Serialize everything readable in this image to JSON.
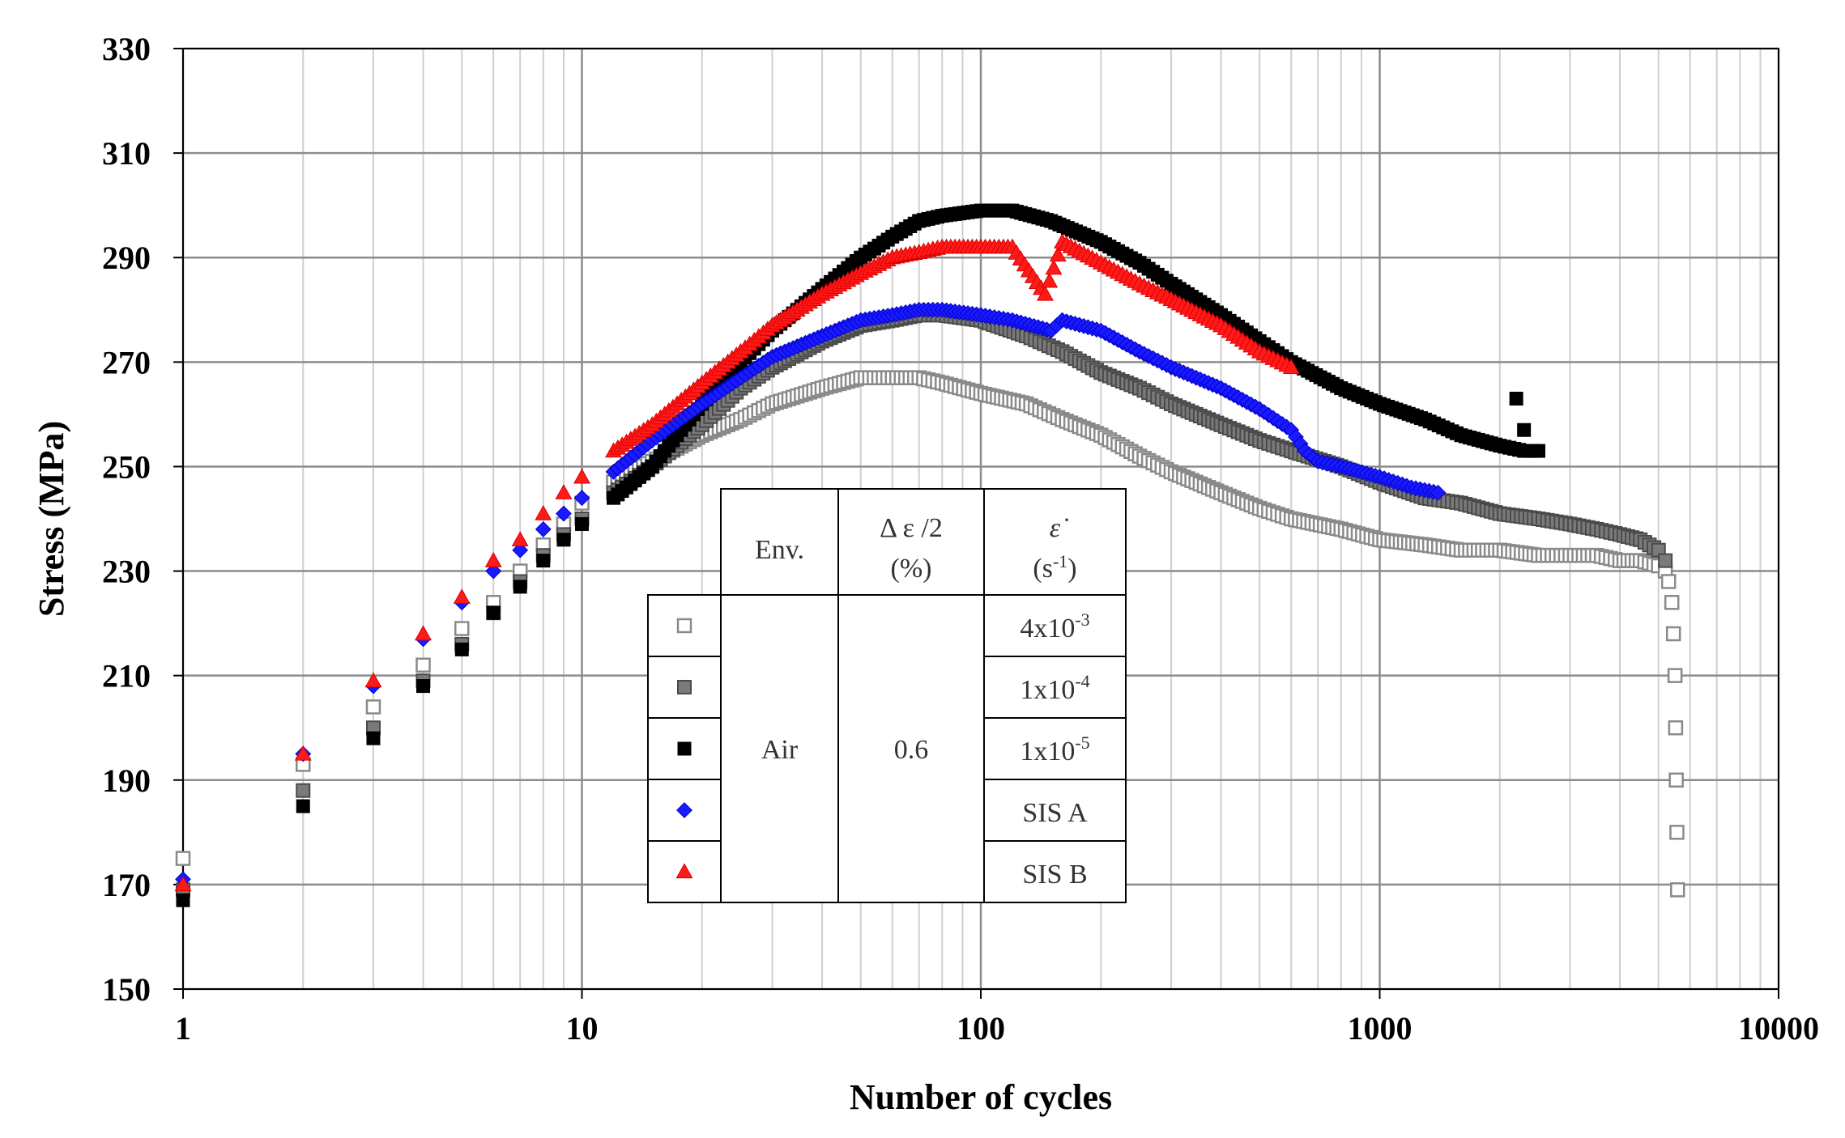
{
  "chart_data": {
    "type": "scatter",
    "title": "",
    "xlabel": "Number of cycles",
    "ylabel": "Stress (MPa)",
    "xscale": "log",
    "xlim": [
      1,
      10000
    ],
    "ylim": [
      150,
      330
    ],
    "grid": true,
    "xticks": [
      {
        "value": 1,
        "label": "1"
      },
      {
        "value": 10,
        "label": "10"
      },
      {
        "value": 100,
        "label": "100"
      },
      {
        "value": 1000,
        "label": "1000"
      },
      {
        "value": 10000,
        "label": "10000"
      }
    ],
    "yticks": [
      {
        "value": 150,
        "label": "150"
      },
      {
        "value": 170,
        "label": "170"
      },
      {
        "value": 190,
        "label": "190"
      },
      {
        "value": 210,
        "label": "210"
      },
      {
        "value": 230,
        "label": "230"
      },
      {
        "value": 250,
        "label": "250"
      },
      {
        "value": 270,
        "label": "270"
      },
      {
        "value": 290,
        "label": "290"
      },
      {
        "value": 310,
        "label": "310"
      },
      {
        "value": 330,
        "label": "330"
      }
    ],
    "series": [
      {
        "name": "4x10-3",
        "marker": "square-open",
        "color": "#999999",
        "points": [
          [
            1,
            175
          ],
          [
            2,
            193
          ],
          [
            3,
            204
          ],
          [
            4,
            212
          ],
          [
            5,
            219
          ],
          [
            6,
            224
          ],
          [
            7,
            230
          ],
          [
            8,
            235
          ],
          [
            9,
            239
          ],
          [
            10,
            243
          ],
          [
            12,
            247
          ],
          [
            15,
            251
          ],
          [
            20,
            256
          ],
          [
            25,
            259
          ],
          [
            30,
            262
          ],
          [
            40,
            265
          ],
          [
            50,
            267
          ],
          [
            60,
            267
          ],
          [
            70,
            267
          ],
          [
            80,
            266
          ],
          [
            100,
            264
          ],
          [
            130,
            262
          ],
          [
            160,
            259
          ],
          [
            200,
            256
          ],
          [
            250,
            252
          ],
          [
            300,
            249
          ],
          [
            400,
            245
          ],
          [
            500,
            242
          ],
          [
            600,
            240
          ],
          [
            800,
            238
          ],
          [
            1000,
            236
          ],
          [
            1300,
            235
          ],
          [
            1600,
            234
          ],
          [
            2000,
            234
          ],
          [
            2500,
            233
          ],
          [
            3000,
            233
          ],
          [
            3500,
            233
          ],
          [
            4000,
            232
          ],
          [
            4500,
            232
          ],
          [
            5000,
            231
          ],
          [
            5200,
            230
          ],
          [
            5300,
            228
          ],
          [
            5400,
            224
          ],
          [
            5450,
            218
          ],
          [
            5500,
            210
          ],
          [
            5520,
            200
          ],
          [
            5540,
            190
          ],
          [
            5560,
            180
          ],
          [
            5580,
            169
          ]
        ]
      },
      {
        "name": "1x10-4",
        "marker": "square-gray",
        "color": "#777777",
        "points": [
          [
            1,
            169
          ],
          [
            2,
            188
          ],
          [
            3,
            200
          ],
          [
            4,
            209
          ],
          [
            5,
            216
          ],
          [
            6,
            222
          ],
          [
            7,
            228
          ],
          [
            8,
            233
          ],
          [
            9,
            237
          ],
          [
            10,
            240
          ],
          [
            12,
            245
          ],
          [
            15,
            250
          ],
          [
            20,
            258
          ],
          [
            25,
            265
          ],
          [
            30,
            269
          ],
          [
            40,
            274
          ],
          [
            50,
            277
          ],
          [
            60,
            278
          ],
          [
            70,
            279
          ],
          [
            80,
            279
          ],
          [
            100,
            278
          ],
          [
            130,
            275
          ],
          [
            160,
            272
          ],
          [
            200,
            268
          ],
          [
            250,
            265
          ],
          [
            300,
            262
          ],
          [
            400,
            258
          ],
          [
            500,
            255
          ],
          [
            600,
            253
          ],
          [
            800,
            250
          ],
          [
            1000,
            247
          ],
          [
            1300,
            244
          ],
          [
            1600,
            243
          ],
          [
            2000,
            241
          ],
          [
            2500,
            240
          ],
          [
            3000,
            239
          ],
          [
            3500,
            238
          ],
          [
            4000,
            237
          ],
          [
            4500,
            236
          ],
          [
            5000,
            234
          ],
          [
            5200,
            232
          ]
        ]
      },
      {
        "name": "1x10-5",
        "marker": "square-black",
        "color": "#000000",
        "points": [
          [
            1,
            167
          ],
          [
            2,
            185
          ],
          [
            3,
            198
          ],
          [
            4,
            208
          ],
          [
            5,
            215
          ],
          [
            6,
            222
          ],
          [
            7,
            227
          ],
          [
            8,
            232
          ],
          [
            9,
            236
          ],
          [
            10,
            239
          ],
          [
            12,
            244
          ],
          [
            15,
            250
          ],
          [
            20,
            262
          ],
          [
            25,
            270
          ],
          [
            30,
            276
          ],
          [
            40,
            284
          ],
          [
            50,
            290
          ],
          [
            60,
            294
          ],
          [
            70,
            297
          ],
          [
            80,
            298
          ],
          [
            100,
            299
          ],
          [
            120,
            299
          ],
          [
            150,
            297
          ],
          [
            200,
            293
          ],
          [
            250,
            289
          ],
          [
            300,
            285
          ],
          [
            400,
            279
          ],
          [
            500,
            274
          ],
          [
            600,
            270
          ],
          [
            800,
            265
          ],
          [
            1000,
            262
          ],
          [
            1300,
            259
          ],
          [
            1600,
            256
          ],
          [
            2000,
            254
          ],
          [
            2300,
            253
          ],
          [
            2500,
            253
          ],
          [
            2200,
            263
          ],
          [
            2300,
            257
          ]
        ]
      },
      {
        "name": "SIS A",
        "marker": "diamond",
        "color": "#1a1aff",
        "points": [
          [
            1,
            171
          ],
          [
            2,
            195
          ],
          [
            3,
            208
          ],
          [
            4,
            217
          ],
          [
            5,
            224
          ],
          [
            6,
            230
          ],
          [
            7,
            234
          ],
          [
            8,
            238
          ],
          [
            9,
            241
          ],
          [
            10,
            244
          ],
          [
            12,
            249
          ],
          [
            15,
            255
          ],
          [
            20,
            262
          ],
          [
            25,
            267
          ],
          [
            30,
            271
          ],
          [
            40,
            275
          ],
          [
            50,
            278
          ],
          [
            60,
            279
          ],
          [
            70,
            280
          ],
          [
            80,
            280
          ],
          [
            100,
            279
          ],
          [
            120,
            278
          ],
          [
            150,
            276
          ],
          [
            160,
            278
          ],
          [
            200,
            276
          ],
          [
            250,
            272
          ],
          [
            300,
            269
          ],
          [
            400,
            265
          ],
          [
            500,
            261
          ],
          [
            600,
            257
          ],
          [
            650,
            253
          ],
          [
            700,
            251
          ],
          [
            800,
            250
          ],
          [
            1000,
            248
          ],
          [
            1200,
            246
          ],
          [
            1400,
            245
          ]
        ]
      },
      {
        "name": "SIS B",
        "marker": "triangle",
        "color": "#ff1a1a",
        "points": [
          [
            1,
            170
          ],
          [
            2,
            195
          ],
          [
            3,
            209
          ],
          [
            4,
            218
          ],
          [
            5,
            225
          ],
          [
            6,
            232
          ],
          [
            7,
            236
          ],
          [
            8,
            241
          ],
          [
            9,
            245
          ],
          [
            10,
            248
          ],
          [
            12,
            253
          ],
          [
            15,
            258
          ],
          [
            20,
            266
          ],
          [
            25,
            272
          ],
          [
            30,
            277
          ],
          [
            40,
            283
          ],
          [
            50,
            287
          ],
          [
            60,
            290
          ],
          [
            70,
            291
          ],
          [
            80,
            292
          ],
          [
            100,
            292
          ],
          [
            120,
            292
          ],
          [
            145,
            283
          ],
          [
            160,
            293
          ],
          [
            200,
            289
          ],
          [
            250,
            285
          ],
          [
            300,
            282
          ],
          [
            400,
            277
          ],
          [
            500,
            272
          ],
          [
            600,
            269
          ]
        ]
      }
    ],
    "legend_table": {
      "headers": {
        "env": "Env.",
        "strain_amp_1": "Δ ε /2",
        "strain_amp_2": "(%)",
        "strain_rate_symbol": "ε̇",
        "strain_rate_unit_base": "(s",
        "strain_rate_unit_sup": "-1",
        "strain_rate_unit_end": ")"
      },
      "env_value": "Air",
      "strain_amp_value": "0.6",
      "rows": [
        {
          "marker": "square-open",
          "base": "4x10",
          "sup": "-3"
        },
        {
          "marker": "square-gray",
          "base": "1x10",
          "sup": "-4"
        },
        {
          "marker": "square-black",
          "base": "1x10",
          "sup": "-5"
        },
        {
          "marker": "diamond",
          "base": "SIS A",
          "sup": ""
        },
        {
          "marker": "triangle",
          "base": "SIS B",
          "sup": ""
        }
      ]
    }
  }
}
